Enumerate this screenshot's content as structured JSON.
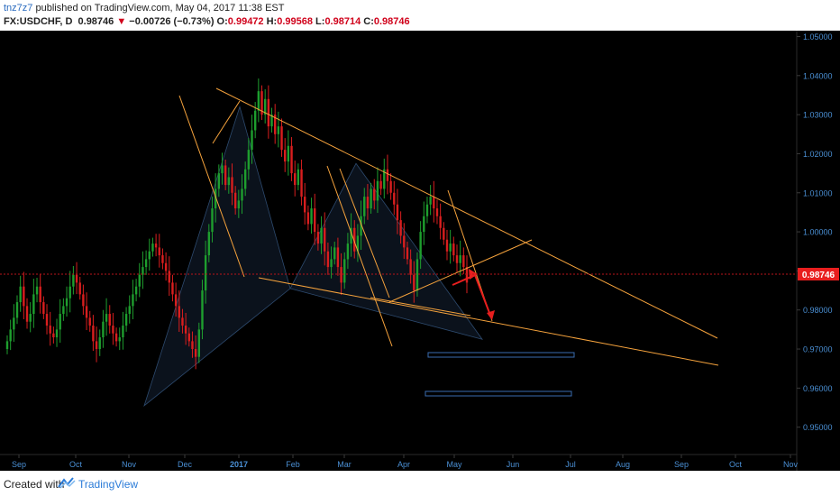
{
  "header": {
    "user": "tnz7z7",
    "published": "published on TradingView.com, May 04, 2017 11:38 EST",
    "symbol": "FX:USDCHF, D",
    "last": "0.98746",
    "change": "−0.00726 (−0.73%)",
    "o_label": "O:",
    "o": "0.99472",
    "h_label": "H:",
    "h": "0.99568",
    "l_label": "L:",
    "l": "0.98714",
    "c_label": "C:",
    "c": "0.98746"
  },
  "footer": {
    "created_with": "Created with",
    "brand": "TradingView"
  },
  "colors": {
    "background": "#000000",
    "bull": "#1e9e2e",
    "bear": "#d81e1e",
    "trendline": "#f5a23c",
    "arrow": "#e81e1e",
    "axis_text": "#4a8fd4",
    "price_label_bg": "#e81e1e"
  },
  "chart_data": {
    "type": "candlestick",
    "symbol": "FX:USDCHF",
    "interval": "D",
    "x_tick_labels": [
      "Sep",
      "Oct",
      "Nov",
      "Dec",
      "2017",
      "Feb",
      "Mar",
      "Apr",
      "May",
      "Jun",
      "Jul",
      "Aug",
      "Sep",
      "Oct",
      "Nov"
    ],
    "y_tick_labels": [
      "1.05000",
      "1.04000",
      "1.03000",
      "1.02000",
      "1.01000",
      "1.00000",
      "0.99000",
      "0.98000",
      "0.97000",
      "0.96000",
      "0.95000"
    ],
    "ylim": [
      0.943,
      1.0515
    ],
    "last_price": 0.98746,
    "last_price_label": "0.98746",
    "approx_closes": [
      0.972,
      0.975,
      0.978,
      0.982,
      0.986,
      0.981,
      0.977,
      0.979,
      0.984,
      0.986,
      0.982,
      0.979,
      0.976,
      0.974,
      0.973,
      0.975,
      0.979,
      0.981,
      0.983,
      0.986,
      0.989,
      0.987,
      0.984,
      0.981,
      0.978,
      0.976,
      0.972,
      0.97,
      0.973,
      0.977,
      0.979,
      0.976,
      0.974,
      0.972,
      0.973,
      0.976,
      0.979,
      0.981,
      0.984,
      0.986,
      0.989,
      0.991,
      0.993,
      0.995,
      0.997,
      0.996,
      0.994,
      0.992,
      0.99,
      0.987,
      0.984,
      0.981,
      0.978,
      0.976,
      0.974,
      0.972,
      0.97,
      0.968,
      0.975,
      0.985,
      0.994,
      1.0,
      1.006,
      1.011,
      1.015,
      1.017,
      1.012,
      1.014,
      1.01,
      1.006,
      1.008,
      1.011,
      1.016,
      1.021,
      1.026,
      1.031,
      1.036,
      1.03,
      1.034,
      1.027,
      1.03,
      1.025,
      1.027,
      1.021,
      1.018,
      1.022,
      1.015,
      1.012,
      1.016,
      1.009,
      1.005,
      1.002,
      1.006,
      1.0,
      0.997,
      1.001,
      0.995,
      0.991,
      0.993,
      0.996,
      0.991,
      0.987,
      0.993,
      0.997,
      1.001,
      0.995,
      0.999,
      1.004,
      1.009,
      1.006,
      1.011,
      1.008,
      1.013,
      1.011,
      1.016,
      1.013,
      1.01,
      1.007,
      1.003,
      0.999,
      0.996,
      0.993,
      0.989,
      0.985,
      0.993,
      1.0,
      1.004,
      1.007,
      1.009,
      1.006,
      1.004,
      1.001,
      0.998,
      0.995,
      0.997,
      0.994,
      0.992,
      0.994,
      0.991,
      0.987
    ]
  }
}
